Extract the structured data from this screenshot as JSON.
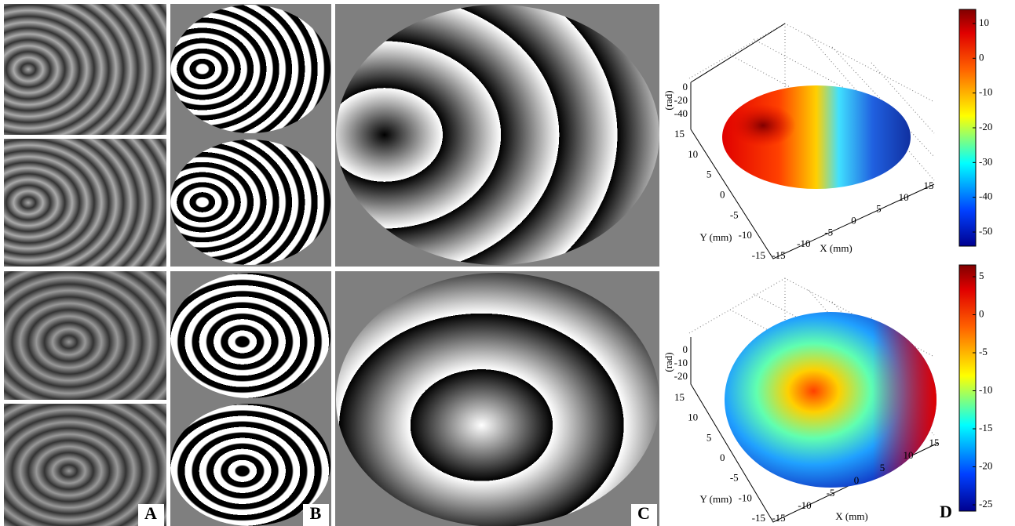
{
  "panels": {
    "labels": [
      "A",
      "B",
      "C",
      "D"
    ]
  },
  "plots": [
    {
      "z_label": "(rad)",
      "y_label": "Y (mm)",
      "x_label": "X (mm)",
      "zticks": [
        0,
        -20,
        -40
      ],
      "yticks": [
        15,
        10,
        5,
        0,
        -5,
        -10,
        -15
      ],
      "xticks": [
        -15,
        -10,
        -5,
        0,
        5,
        10,
        15
      ],
      "colorbar_ticks": [
        10,
        0,
        -10,
        -20,
        -30,
        -40,
        -50
      ]
    },
    {
      "z_label": "(rad)",
      "y_label": "Y (mm)",
      "x_label": "X (mm)",
      "zticks": [
        0,
        -10,
        -20
      ],
      "yticks": [
        15,
        10,
        5,
        0,
        -5,
        -10,
        -15
      ],
      "xticks": [
        -15,
        -10,
        -5,
        0,
        5,
        10,
        15
      ],
      "colorbar_ticks": [
        5,
        0,
        -5,
        -10,
        -15,
        -20,
        -25
      ]
    }
  ]
}
